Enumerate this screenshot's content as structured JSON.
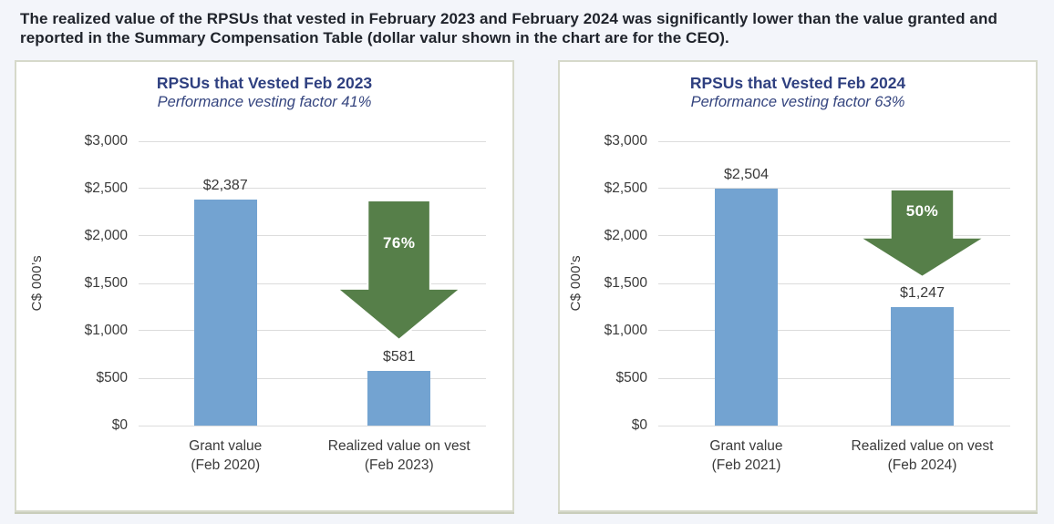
{
  "header": {
    "line1": "The realized value of the RPSUs that vested in February 2023 and February 2024 was significantly lower than the value granted and",
    "line2": "reported in the Summary Compensation Table (dollar valur shown in the chart are for the CEO)."
  },
  "colors": {
    "page_background": "#f3f5fa",
    "panel_background": "#ffffff",
    "panel_border": "#d6d9ca",
    "header_text": "#20242c",
    "title_navy": "#2f4080",
    "axis_text": "#3a3a3a",
    "bar_blue": "#73a3d1",
    "arrow_green": "#567f49",
    "gridline": "#dcdcdc"
  },
  "chart_data": [
    {
      "type": "bar",
      "title": "RPSUs that Vested Feb 2023",
      "subtitle": "Performance vesting factor 41%",
      "ylabel": "C$ 000’s",
      "ylim": [
        0,
        3000
      ],
      "grid": true,
      "yticks": [
        "$3,000",
        "$2,500",
        "$2,000",
        "$1,500",
        "$1,000",
        "$500",
        "$0"
      ],
      "categories": [
        [
          "Grant value",
          "(Feb 2020)"
        ],
        [
          "Realized value on vest",
          "(Feb 2023)"
        ]
      ],
      "values": [
        2387,
        581
      ],
      "value_labels": [
        "$2,387",
        "$581"
      ],
      "drop_label": "76%"
    },
    {
      "type": "bar",
      "title": "RPSUs that Vested Feb 2024",
      "subtitle": "Performance vesting factor 63%",
      "ylabel": "C$ 000’s",
      "ylim": [
        0,
        3000
      ],
      "grid": true,
      "yticks": [
        "$3,000",
        "$2,500",
        "$2,000",
        "$1,500",
        "$1,000",
        "$500",
        "$0"
      ],
      "categories": [
        [
          "Grant value",
          "(Feb 2021)"
        ],
        [
          "Realized value on vest",
          "(Feb 2024)"
        ]
      ],
      "values": [
        2504,
        1247
      ],
      "value_labels": [
        "$2,504",
        "$1,247"
      ],
      "drop_label": "50%"
    }
  ]
}
